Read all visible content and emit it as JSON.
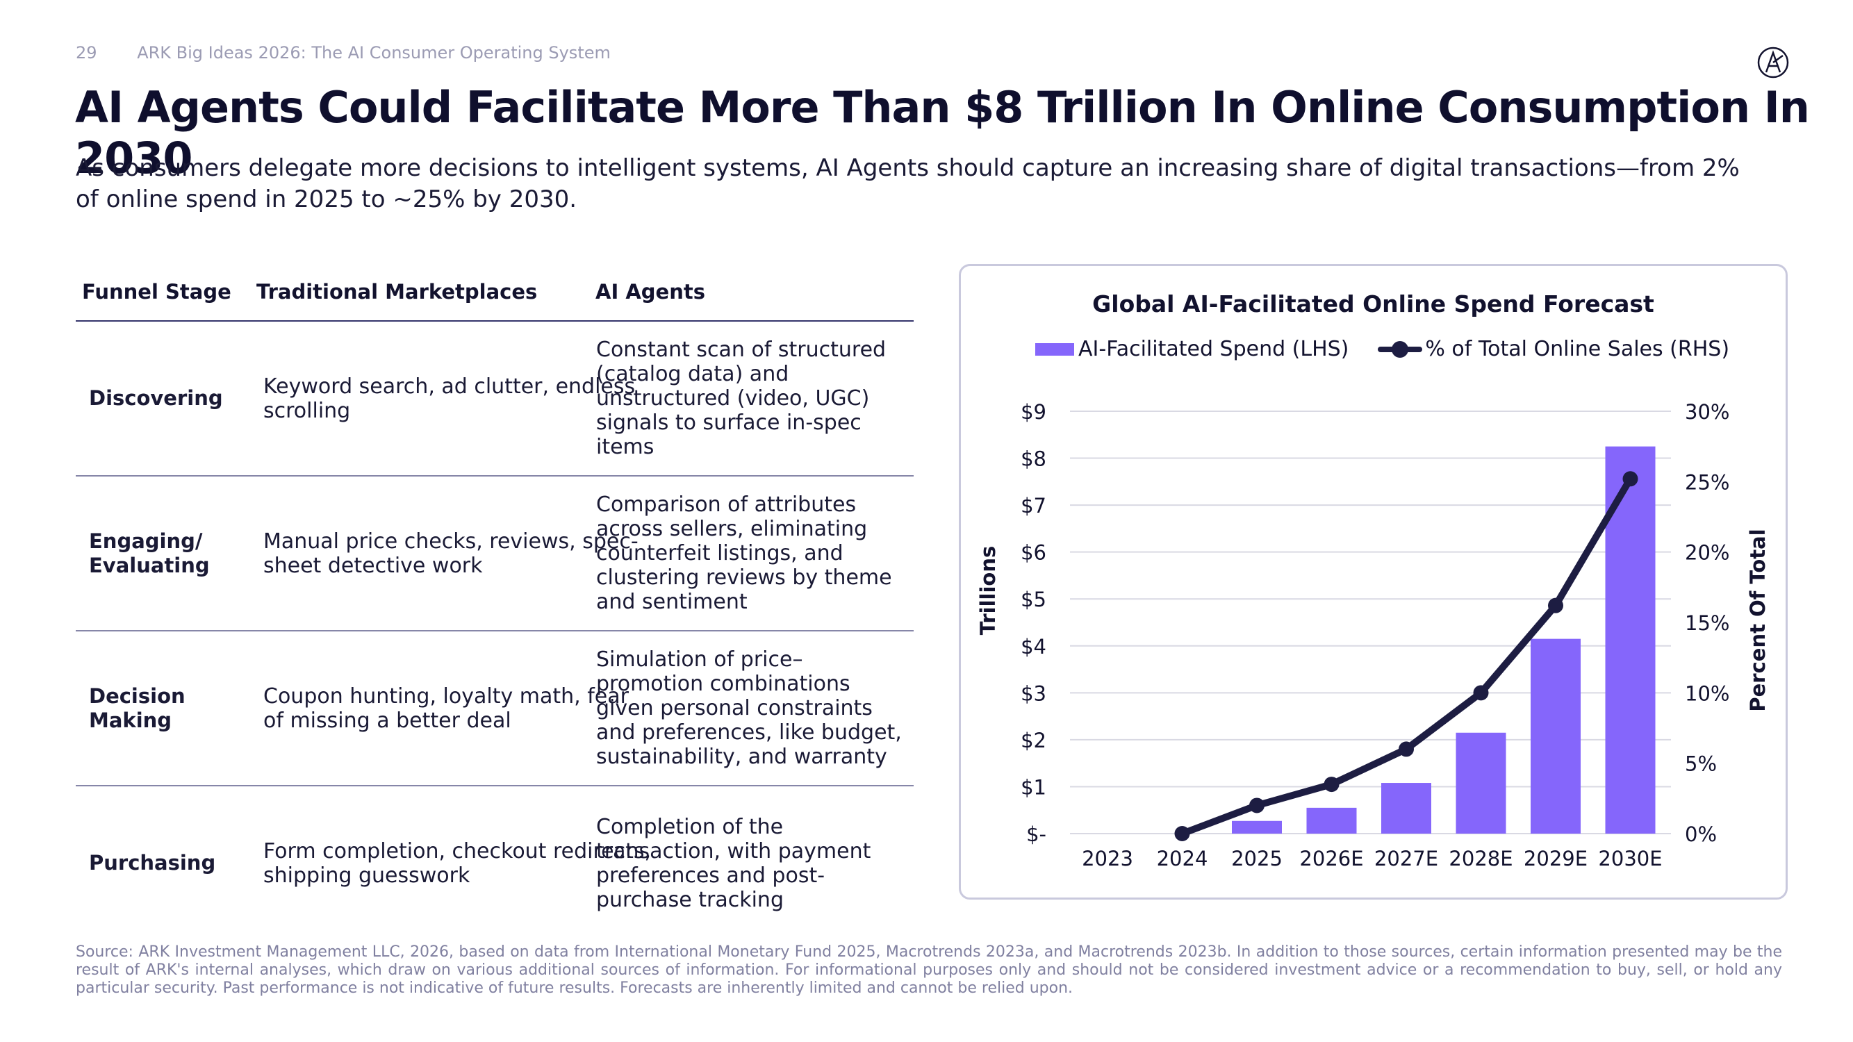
{
  "header": {
    "page_number": "29",
    "deck_title": "ARK Big Ideas 2026: The AI Consumer Operating System"
  },
  "title": "AI Agents Could Facilitate More Than $8 Trillion In Online Consumption In 2030",
  "subtitle": "As consumers delegate more decisions to intelligent systems, AI Agents should capture an increasing share of digital transactions—from 2% of online spend in 2025 to ~25% by 2030.",
  "table": {
    "headers": [
      "Funnel Stage",
      "Traditional Marketplaces",
      "AI Agents"
    ],
    "rows": [
      {
        "stage": "Discovering",
        "traditional": "Keyword search, ad clutter, endless scrolling",
        "agents": "Constant scan of structured (catalog data) and unstructured (video, UGC) signals to surface in-spec items"
      },
      {
        "stage": "Engaging/ Evaluating",
        "traditional": "Manual price checks, reviews, spec-sheet detective work",
        "agents": "Comparison of attributes across sellers, eliminating counterfeit listings, and clustering reviews by theme and sentiment"
      },
      {
        "stage": "Decision Making",
        "traditional": "Coupon hunting, loyalty math, fear of missing a better deal",
        "agents": "Simulation of price–promotion combinations given personal constraints and preferences, like budget, sustainability, and warranty"
      },
      {
        "stage": "Purchasing",
        "traditional": "Form completion, checkout redirects, shipping guesswork",
        "agents": "Completion of the transaction, with payment preferences and post-purchase tracking"
      }
    ]
  },
  "chart_data": {
    "type": "bar",
    "title": "Global AI-Facilitated Online Spend Forecast",
    "categories": [
      "2023",
      "2024",
      "2025",
      "2026E",
      "2027E",
      "2028E",
      "2029E",
      "2030E"
    ],
    "series": [
      {
        "name": "AI-Facilitated Spend (LHS)",
        "type": "bar",
        "axis": "left",
        "values": [
          0,
          0,
          0.27,
          0.55,
          1.08,
          2.15,
          4.15,
          8.25
        ]
      },
      {
        "name": "% of Total Online Sales (RHS)",
        "type": "line",
        "axis": "right",
        "values": [
          null,
          0,
          2,
          3.5,
          6,
          10,
          16.2,
          25.2
        ]
      }
    ],
    "ylabel": "Trillions",
    "y2label": "Percent Of Total",
    "ylim": [
      0,
      9
    ],
    "y2lim": [
      0,
      30
    ],
    "yticks": [
      "$-",
      "$1",
      "$2",
      "$3",
      "$4",
      "$5",
      "$6",
      "$7",
      "$8",
      "$9"
    ],
    "y2ticks": [
      "0%",
      "5%",
      "10%",
      "15%",
      "20%",
      "25%",
      "30%"
    ],
    "legend_position": "top",
    "grid": true,
    "colors": {
      "bar": "#8566fb",
      "line": "#1d1d42",
      "grid": "#d9d9e3"
    }
  },
  "footer": "Source: ARK Investment Management LLC, 2026, based on data from International Monetary Fund 2025, Macrotrends 2023a, and Macrotrends 2023b. In addition to those sources, certain information presented may be the result of ARK's internal analyses, which draw on various additional sources of information. For informational purposes only and should not be considered investment advice or a recommendation to buy, sell, or hold any particular security. Past performance is not indicative of future results. Forecasts are inherently limited and cannot be relied upon.",
  "icons": {
    "logo": "ark-logo-icon"
  }
}
